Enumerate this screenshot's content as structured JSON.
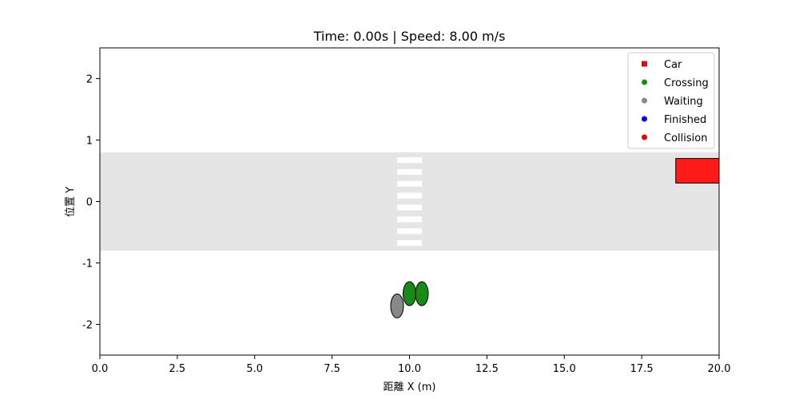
{
  "chart_data": {
    "type": "scatter",
    "title": "Time: 0.00s | Speed: 8.00 m/s",
    "xlabel": "距離 X (m)",
    "ylabel": "位置 Y",
    "xlim": [
      0,
      20
    ],
    "ylim": [
      -2.5,
      2.5
    ],
    "xticks": [
      0,
      2.5,
      5,
      7.5,
      10,
      12.5,
      15,
      17.5,
      20
    ],
    "xtick_labels": [
      "0.0",
      "2.5",
      "5.0",
      "7.5",
      "10.0",
      "12.5",
      "15.0",
      "17.5",
      "20.0"
    ],
    "yticks": [
      -2,
      -1,
      0,
      1,
      2
    ],
    "ytick_labels": [
      "-2",
      "-1",
      "0",
      "1",
      "2"
    ],
    "grid": false,
    "road": {
      "y_min": -0.8,
      "y_max": 0.8,
      "color": "#e5e5e5"
    },
    "crosswalk": {
      "x_min": 9.6,
      "x_max": 10.4,
      "y_min": -0.8,
      "y_max": 0.8,
      "stripe_count": 8,
      "color": "#ffffff"
    },
    "car": {
      "x_min": 18.6,
      "x_max": 20.0,
      "y_min": 0.3,
      "y_max": 0.7,
      "color": "#ff1a1a"
    },
    "pedestrians": [
      {
        "x": 10.0,
        "y": -1.5,
        "status": "Crossing"
      },
      {
        "x": 10.4,
        "y": -1.5,
        "status": "Crossing"
      },
      {
        "x": 9.6,
        "y": -1.7,
        "status": "Waiting"
      }
    ],
    "status_colors": {
      "Crossing": "#178a17",
      "Waiting": "#888888",
      "Finished": "#0000ee",
      "Collision": "#ee0000"
    },
    "legend": {
      "position": "top-right",
      "entries": [
        {
          "label": "Car",
          "marker": "square",
          "color": "#ee0000"
        },
        {
          "label": "Crossing",
          "marker": "circle",
          "color": "#178a17"
        },
        {
          "label": "Waiting",
          "marker": "circle",
          "color": "#888888"
        },
        {
          "label": "Finished",
          "marker": "circle",
          "color": "#0000ee"
        },
        {
          "label": "Collision",
          "marker": "circle",
          "color": "#ee0000"
        }
      ]
    }
  }
}
